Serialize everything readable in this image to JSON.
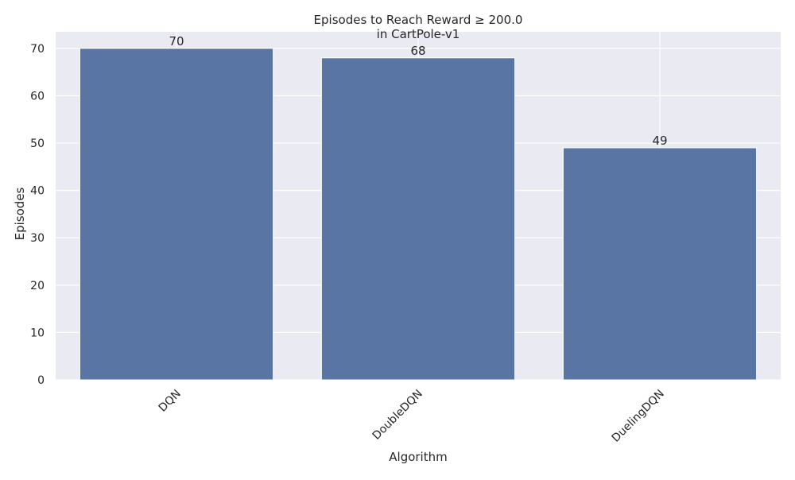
{
  "chart_data": {
    "type": "bar",
    "title": "Episodes to Reach Reward ≥ 200.0",
    "subtitle": "in CartPole-v1",
    "xlabel": "Algorithm",
    "ylabel": "Episodes",
    "categories": [
      "DQN",
      "DoubleDQN",
      "DuelingDQN"
    ],
    "values": [
      70,
      68,
      49
    ],
    "data_labels": [
      "70",
      "68",
      "49"
    ],
    "ylim": [
      0,
      73.5
    ],
    "yticks": [
      0,
      10,
      20,
      30,
      40,
      50,
      60,
      70
    ],
    "ytick_labels": [
      "0",
      "10",
      "20",
      "30",
      "40",
      "50",
      "60",
      "70"
    ],
    "grid": true,
    "legend": "none",
    "x_tick_rotation_deg": 45,
    "colors": {
      "bar": "#5875a4",
      "plot_background": "#eaeaf2",
      "grid": "#ffffff",
      "text": "#262626"
    }
  }
}
